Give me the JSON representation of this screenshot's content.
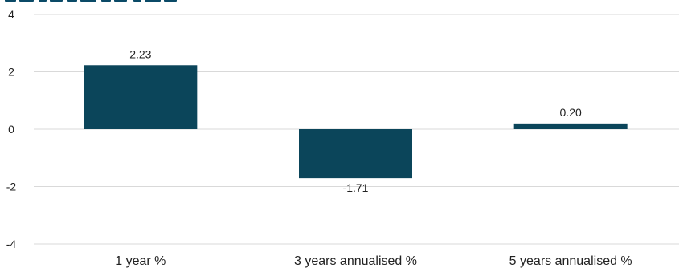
{
  "chart_data": {
    "type": "bar",
    "title": "",
    "xlabel": "",
    "ylabel": "",
    "categories": [
      "1 year %",
      "3 years annualised %",
      "5 years annualised %"
    ],
    "values": [
      2.23,
      -1.71,
      0.2
    ],
    "data_labels": [
      "2.23",
      "-1.71",
      "0.20"
    ],
    "ylim": [
      -4,
      4
    ],
    "yticks": [
      -4,
      -2,
      0,
      2,
      4
    ],
    "ytick_labels": [
      "-4",
      "-2",
      "0",
      "2",
      "4"
    ],
    "grid": true,
    "legend": "none",
    "colors": {
      "bar": "#0b455a",
      "gridline": "#d9d9d9",
      "text": "#222222",
      "title_fragment": "#0b4a67"
    }
  }
}
